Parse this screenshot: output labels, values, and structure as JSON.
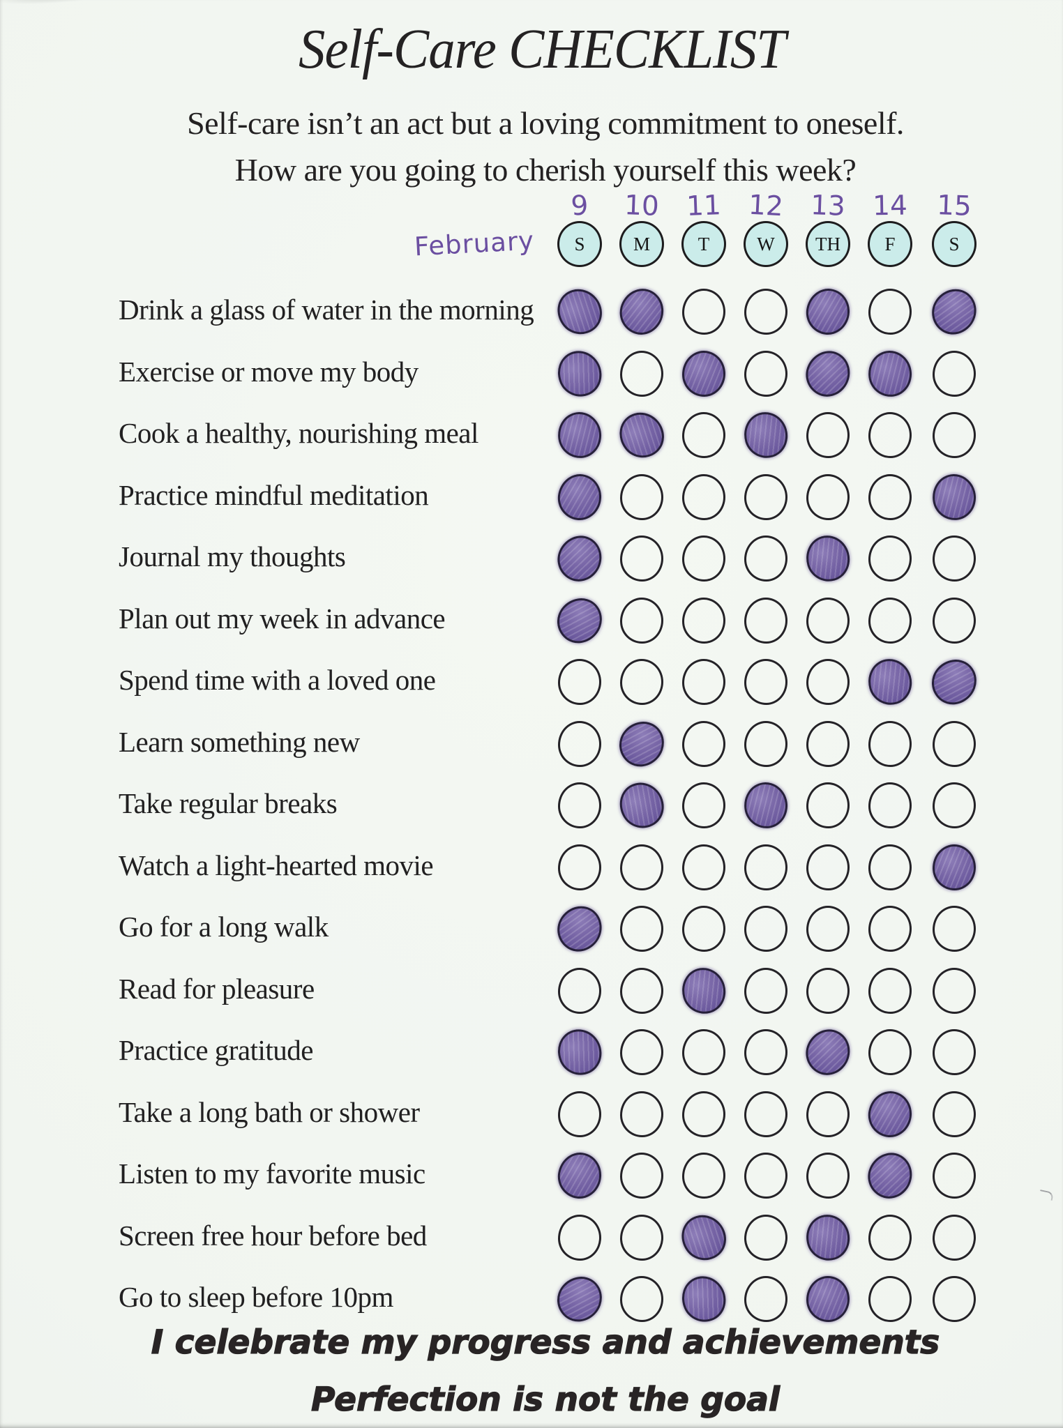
{
  "page": {
    "title": "Self-Care CHECKLIST",
    "subtitle_line1": "Self-care isn’t an act but a loving commitment to oneself.",
    "subtitle_line2": "How are you going to cherish yourself this week?",
    "month_label": "February",
    "affirmation_line1": "I celebrate my progress and achievements",
    "affirmation_line2": "Perfection is not the goal"
  },
  "week": {
    "dates": [
      "9",
      "10",
      "11",
      "12",
      "13",
      "14",
      "15"
    ],
    "days": [
      "S",
      "M",
      "T",
      "W",
      "TH",
      "F",
      "S"
    ]
  },
  "tasks": [
    {
      "label": "Drink a glass of water in the morning",
      "checks": [
        1,
        1,
        0,
        0,
        1,
        0,
        1
      ]
    },
    {
      "label": "Exercise or move my body",
      "checks": [
        1,
        0,
        1,
        0,
        1,
        1,
        0
      ]
    },
    {
      "label": "Cook a healthy, nourishing meal",
      "checks": [
        1,
        1,
        0,
        1,
        0,
        0,
        0
      ]
    },
    {
      "label": "Practice mindful meditation",
      "checks": [
        1,
        0,
        0,
        0,
        0,
        0,
        1
      ]
    },
    {
      "label": "Journal my thoughts",
      "checks": [
        1,
        0,
        0,
        0,
        1,
        0,
        0
      ]
    },
    {
      "label": "Plan out my week in advance",
      "checks": [
        1,
        0,
        0,
        0,
        0,
        0,
        0
      ]
    },
    {
      "label": "Spend time with a loved one",
      "checks": [
        0,
        0,
        0,
        0,
        0,
        1,
        1
      ]
    },
    {
      "label": "Learn something new",
      "checks": [
        0,
        1,
        0,
        0,
        0,
        0,
        0
      ]
    },
    {
      "label": "Take regular breaks",
      "checks": [
        0,
        1,
        0,
        1,
        0,
        0,
        0
      ]
    },
    {
      "label": "Watch a light-hearted movie",
      "checks": [
        0,
        0,
        0,
        0,
        0,
        0,
        1
      ]
    },
    {
      "label": "Go for a long walk",
      "checks": [
        1,
        0,
        0,
        0,
        0,
        0,
        0
      ]
    },
    {
      "label": "Read for pleasure",
      "checks": [
        0,
        0,
        1,
        0,
        0,
        0,
        0
      ]
    },
    {
      "label": "Practice gratitude",
      "checks": [
        1,
        0,
        0,
        0,
        1,
        0,
        0
      ]
    },
    {
      "label": "Take a long bath or shower",
      "checks": [
        0,
        0,
        0,
        0,
        0,
        1,
        0
      ]
    },
    {
      "label": "Listen to my favorite music",
      "checks": [
        1,
        0,
        0,
        0,
        0,
        1,
        0
      ]
    },
    {
      "label": "Screen free hour before bed",
      "checks": [
        0,
        0,
        1,
        0,
        1,
        0,
        0
      ]
    },
    {
      "label": "Go to sleep before 10pm",
      "checks": [
        1,
        0,
        1,
        0,
        1,
        0,
        0
      ]
    }
  ],
  "colors": {
    "paper": "#f1f5f0",
    "ink": "#211f20",
    "marker_purple": "#75639f",
    "day_circle_fill": "#cbecea",
    "handwriting_purple": "#6b4fa1"
  }
}
